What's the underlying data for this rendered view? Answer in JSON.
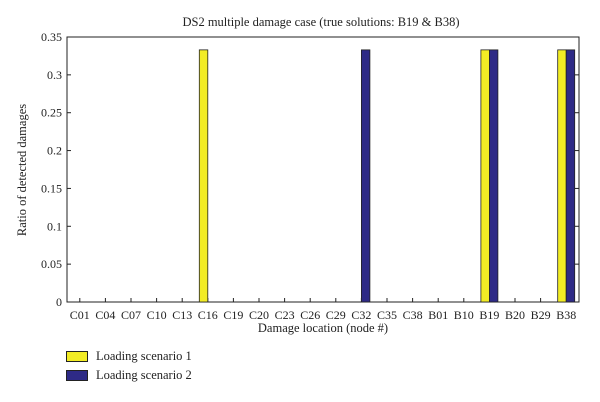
{
  "chart_data": {
    "type": "bar",
    "title": "DS2 multiple damage case (true solutions: B19 & B38)",
    "xlabel": "Damage location (node #)",
    "ylabel": "Ratio of detected damages",
    "ylim": [
      0,
      0.35
    ],
    "yticks": [
      "0",
      "0.05",
      "0.1",
      "0.15",
      "0.2",
      "0.25",
      "0.3",
      "0.35"
    ],
    "categories": [
      "C01",
      "C04",
      "C07",
      "C10",
      "C13",
      "C16",
      "C19",
      "C20",
      "C23",
      "C26",
      "C29",
      "C32",
      "C35",
      "C38",
      "B01",
      "B10",
      "B19",
      "B20",
      "B29",
      "B38"
    ],
    "series": [
      {
        "name": "Loading scenario 1",
        "color": "#f2ec25",
        "values": [
          0,
          0,
          0,
          0,
          0,
          0.333,
          0,
          0,
          0,
          0,
          0,
          0,
          0,
          0,
          0,
          0,
          0.333,
          0,
          0,
          0.333
        ]
      },
      {
        "name": "Loading scenario 2",
        "color": "#2e2a86",
        "values": [
          0,
          0,
          0,
          0,
          0,
          0,
          0,
          0,
          0,
          0,
          0,
          0.333,
          0,
          0,
          0,
          0,
          0.333,
          0,
          0,
          0.333
        ]
      }
    ],
    "legend_position": "bottom-left",
    "grid": false
  }
}
